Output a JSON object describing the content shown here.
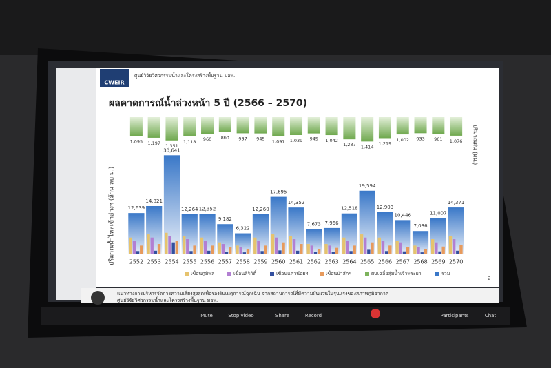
{
  "slide": {
    "logo": "CWEIR",
    "org": "ศูนย์วิจัยวิศวกรรมน้ำและโครงสร้างพื้นฐาน มอพ.",
    "page": "2",
    "footer": [
      "แนวทางการบริหารจัดการความเสี่ยงสูงสุดเพื่อรองรับเหตุการณ์ฉุกเฉิน จากสถานการณ์ที่มีความผันผวนในรุนแรงของสภาพภูมิอากาศ",
      "ศูนย์วิจัยวิศวกรรมน้ำและโครงสร้างพื้นฐาน มอพ."
    ]
  },
  "toolbar": [
    "Mute",
    "Stop video",
    "Share",
    "Record",
    "Participants",
    "Chat"
  ],
  "chart_data": {
    "type": "bar",
    "title": "ผลคาดการณ์น้ำล่วงหน้า 5 ปี (2566 – 2570)",
    "y_label": "ปริมาณน้ำไหลเข้าอ่างฯ (ล้าน ลบ.ม.)",
    "y2_label": "ปริมาณฝน (มม.)",
    "categories": [
      "2552",
      "2553",
      "2554",
      "2555",
      "2556",
      "2557",
      "2558",
      "2559",
      "2560",
      "2561",
      "2562",
      "2563",
      "2564",
      "2565",
      "2566",
      "2567",
      "2568",
      "2569",
      "2570"
    ],
    "ylim": [
      0,
      32000
    ],
    "y2lim": [
      0,
      4000
    ],
    "y2_inverted": true,
    "total": {
      "name": "รวม",
      "color": "#3a78c8",
      "values": [
        12639,
        14821,
        30641,
        12264,
        12352,
        9182,
        6322,
        12260,
        17695,
        14352,
        7673,
        7966,
        12518,
        19594,
        12903,
        10446,
        7036,
        11007,
        14371
      ],
      "value_labels": [
        "12,639",
        "14,821",
        "30,641",
        "12,264",
        "12,352",
        "9,182",
        "6,322",
        "12,260",
        "17,695",
        "14,352",
        "7,673",
        "7,966",
        "12,518",
        "19,594",
        "12,903",
        "10,446",
        "7,036",
        "11,007",
        "14,371"
      ]
    },
    "series": [
      {
        "name": "เขื่อนภูมิพล",
        "color": "#e6c36e",
        "values": [
          5000,
          6000,
          6500,
          5500,
          5000,
          3500,
          2500,
          5000,
          6000,
          5500,
          3000,
          3000,
          5000,
          6000,
          5000,
          4000,
          2500,
          4500,
          5500
        ]
      },
      {
        "name": "เขื่อนสิริกิติ์",
        "color": "#b27fd2",
        "values": [
          4000,
          5000,
          5500,
          4500,
          4000,
          3000,
          2000,
          4000,
          5000,
          4500,
          2500,
          2500,
          4000,
          5000,
          4000,
          3500,
          2000,
          3500,
          4500
        ]
      },
      {
        "name": "เขื่อนแควน้อยฯ",
        "color": "#34509f",
        "values": [
          800,
          900,
          3500,
          800,
          900,
          600,
          400,
          800,
          1000,
          900,
          500,
          500,
          800,
          1200,
          800,
          700,
          400,
          700,
          900
        ]
      },
      {
        "name": "เขื่อนป่าสักฯ",
        "color": "#e79a5c",
        "values": [
          2500,
          3000,
          4000,
          2500,
          2500,
          2000,
          1500,
          2500,
          3500,
          3000,
          1500,
          1800,
          2500,
          3500,
          2500,
          2000,
          1500,
          2200,
          2800
        ]
      }
    ],
    "rain": {
      "name": "ฝนเฉลี่ยลุ่มน้ำเจ้าพระยา",
      "color": "#7db35c",
      "axis": "y2",
      "values": [
        1095,
        1197,
        1351,
        1118,
        960,
        863,
        937,
        945,
        1097,
        1039,
        945,
        1042,
        1287,
        1414,
        1219,
        1002,
        933,
        961,
        1076
      ],
      "value_labels": [
        "1,095",
        "1,197",
        "1,351",
        "1,118",
        "960",
        "863",
        "937",
        "945",
        "1,097",
        "1,039",
        "945",
        "1,042",
        "1,287",
        "1,414",
        "1,219",
        "1,002",
        "933",
        "961",
        "1,076"
      ]
    }
  }
}
